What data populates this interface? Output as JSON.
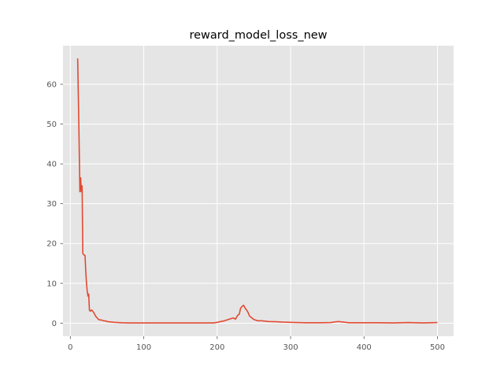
{
  "chart_data": {
    "type": "line",
    "title": "reward_model_loss_new",
    "xlabel": "",
    "ylabel": "",
    "xlim": [
      -10,
      522
    ],
    "ylim": [
      -3.3,
      69.7
    ],
    "xticks": [
      0,
      100,
      200,
      300,
      400,
      500
    ],
    "yticks": [
      0,
      10,
      20,
      30,
      40,
      50,
      60
    ],
    "grid": true,
    "style": "ggplot",
    "colors": {
      "line": "#E24A33",
      "plot_bg": "#E5E5E5",
      "grid": "#FFFFFF",
      "tick_text": "#555555"
    },
    "series": [
      {
        "x": [
          10,
          12,
          13,
          14,
          15,
          16,
          17,
          18,
          20,
          21,
          22,
          23,
          24,
          25,
          26,
          27,
          28,
          29,
          30,
          32,
          34,
          36,
          38,
          40,
          42,
          45,
          48,
          50,
          55,
          60,
          70,
          80,
          90,
          100,
          120,
          140,
          160,
          180,
          195,
          200,
          205,
          210,
          215,
          220,
          222,
          225,
          228,
          230,
          232,
          234,
          236,
          238,
          240,
          242,
          244,
          246,
          250,
          255,
          260,
          265,
          270,
          280,
          290,
          300,
          320,
          340,
          355,
          360,
          365,
          370,
          380,
          400,
          420,
          440,
          450,
          460,
          470,
          480,
          490,
          500
        ],
        "y": [
          66.5,
          45.0,
          33.0,
          36.5,
          33.0,
          34.5,
          17.5,
          17.2,
          17.0,
          13.0,
          10.0,
          8.0,
          6.8,
          7.3,
          3.3,
          3.0,
          3.2,
          3.3,
          3.1,
          2.6,
          1.9,
          1.4,
          1.0,
          0.8,
          0.8,
          0.6,
          0.55,
          0.4,
          0.3,
          0.2,
          0.1,
          0.05,
          0.05,
          0.05,
          0.05,
          0.05,
          0.05,
          0.05,
          0.05,
          0.2,
          0.4,
          0.6,
          0.9,
          1.2,
          1.3,
          1.0,
          2.0,
          2.2,
          3.8,
          4.2,
          4.5,
          3.8,
          3.3,
          2.7,
          1.8,
          1.5,
          0.9,
          0.6,
          0.6,
          0.5,
          0.4,
          0.35,
          0.25,
          0.2,
          0.1,
          0.1,
          0.15,
          0.3,
          0.4,
          0.3,
          0.1,
          0.1,
          0.1,
          0.05,
          0.1,
          0.15,
          0.1,
          0.05,
          0.1,
          0.15
        ]
      }
    ]
  }
}
